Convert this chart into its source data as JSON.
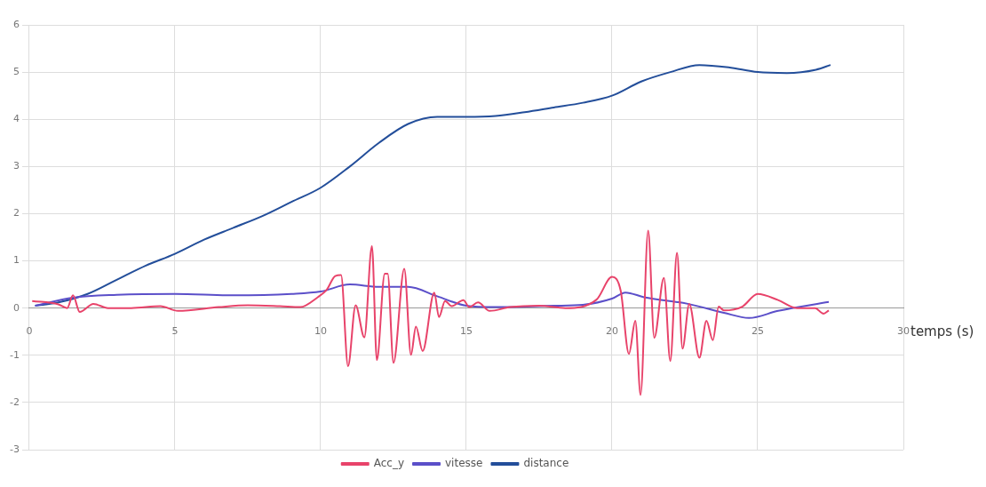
{
  "chart_data": {
    "type": "line",
    "xlabel": "temps (s)",
    "xlim": [
      0,
      30
    ],
    "xticks": [
      0,
      5,
      10,
      15,
      20,
      25,
      30
    ],
    "ylim": [
      -3,
      6
    ],
    "yticks": [
      -3,
      -2,
      -1,
      0,
      1,
      2,
      3,
      4,
      5,
      6
    ],
    "grid": true,
    "legend": "bottom",
    "marker": "none",
    "line_style": "solid",
    "series": [
      {
        "name": "Acc_y",
        "color": "#e8436a",
        "x": [
          0.1,
          1,
          1.3,
          1.5,
          1.73,
          2.2,
          2.7,
          3.5,
          4.5,
          5.1,
          6.5,
          7.5,
          8.6,
          9.3,
          9.9,
          10.2,
          10.5,
          10.7,
          10.94,
          11.2,
          11.5,
          11.76,
          11.93,
          12.2,
          12.3,
          12.5,
          12.87,
          13.1,
          13.27,
          13.5,
          13.9,
          14.06,
          14.27,
          14.5,
          14.9,
          15.1,
          15.4,
          15.8,
          16.5,
          17.5,
          18.4,
          19.47,
          20,
          20.3,
          20.58,
          20.8,
          20.98,
          21.24,
          21.45,
          21.78,
          22,
          22.23,
          22.42,
          22.65,
          23,
          23.24,
          23.46,
          23.66,
          23.84,
          24.47,
          25,
          25.7,
          26.34,
          26.97,
          27.26,
          27.44
        ],
        "values": [
          0.15,
          0.08,
          0,
          0.27,
          -0.08,
          0.09,
          0,
          0,
          0.04,
          -0.06,
          0.02,
          0.06,
          0.04,
          0.02,
          0.23,
          0.38,
          0.68,
          0.7,
          -1.23,
          0.06,
          -0.62,
          1.31,
          -1.1,
          0.73,
          0.73,
          -1.16,
          0.83,
          -0.99,
          -0.39,
          -0.91,
          0.33,
          -0.19,
          0.15,
          0.04,
          0.17,
          0.02,
          0.12,
          -0.06,
          0.02,
          0.05,
          0,
          0.18,
          0.66,
          0.36,
          -0.97,
          -0.27,
          -1.84,
          1.64,
          -0.63,
          0.64,
          -1.12,
          1.17,
          -0.86,
          0.09,
          -1.05,
          -0.27,
          -0.68,
          0.03,
          -0.05,
          0.03,
          0.3,
          0.17,
          0,
          0,
          -0.12,
          -0.05
        ]
      },
      {
        "name": "vitesse",
        "color": "#5b4fc9",
        "x": [
          0.2,
          1.5,
          3,
          5,
          7,
          9,
          10,
          11,
          12,
          13,
          14,
          15,
          16,
          18,
          19,
          20,
          20.46,
          21.1,
          22.6,
          23.84,
          24.7,
          25.7,
          27.44
        ],
        "values": [
          0.05,
          0.22,
          0.28,
          0.3,
          0.27,
          0.3,
          0.35,
          0.5,
          0.45,
          0.45,
          0.25,
          0.05,
          0.02,
          0.05,
          0.07,
          0.2,
          0.33,
          0.23,
          0.09,
          -0.1,
          -0.21,
          -0.06,
          0.13
        ]
      },
      {
        "name": "distance",
        "color": "#234e9a",
        "x": [
          0.2,
          1,
          2,
          3,
          4,
          5,
          6,
          7,
          8,
          9,
          10,
          11,
          12,
          13,
          14,
          15,
          16,
          17,
          18,
          19,
          20,
          21,
          22,
          23,
          24,
          25,
          26,
          27,
          27.5
        ],
        "values": [
          0.05,
          0.12,
          0.3,
          0.6,
          0.9,
          1.15,
          1.45,
          1.7,
          1.95,
          2.25,
          2.55,
          3,
          3.5,
          3.9,
          4.05,
          4.05,
          4.07,
          4.15,
          4.25,
          4.35,
          4.5,
          4.8,
          5,
          5.15,
          5.1,
          5,
          4.98,
          5.05,
          5.15
        ]
      }
    ]
  }
}
